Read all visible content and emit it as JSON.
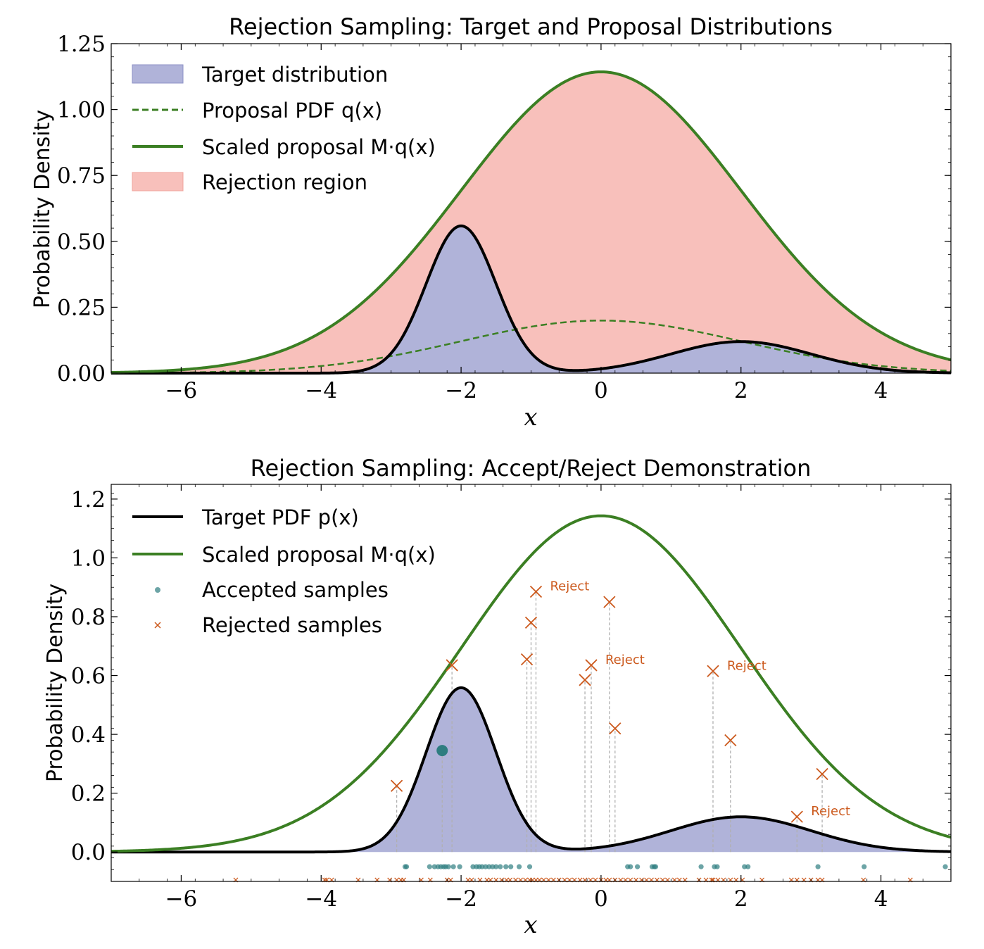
{
  "colors": {
    "target_fill": "#b0b3d9",
    "rejection_fill": "#f8c0bb",
    "green": "#3b7f23",
    "black": "#000000",
    "accepted": "#2e7d80",
    "rejected": "#cc5a1e",
    "stem": "#b0b0b0"
  },
  "chart_data": [
    {
      "type": "area",
      "title": "Rejection Sampling: Target and Proposal Distributions",
      "xlabel": "x",
      "ylabel": "Probability Density",
      "xlim": [
        -7,
        5
      ],
      "ylim": [
        0,
        1.25
      ],
      "xticks": [
        -6,
        -4,
        -2,
        0,
        2,
        4
      ],
      "xtick_labels": [
        "−6",
        "−4",
        "−2",
        "0",
        "2",
        "4"
      ],
      "yticks": [
        0,
        0.25,
        0.5,
        0.75,
        1.0,
        1.25
      ],
      "ytick_labels": [
        "0.00",
        "0.25",
        "0.50",
        "0.75",
        "1.00",
        "1.25"
      ],
      "target": {
        "components": [
          {
            "weight": 0.7,
            "mean": -2,
            "sd": 0.5
          },
          {
            "weight": 0.3,
            "mean": 2,
            "sd": 1
          }
        ]
      },
      "proposal": {
        "mean": 0,
        "sd": 2
      },
      "M": 5.73,
      "legend": [
        {
          "label": "Target distribution",
          "kind": "patch-target"
        },
        {
          "label": "Proposal PDF q(x)",
          "kind": "dashed-green"
        },
        {
          "label": "Scaled proposal M·q(x)",
          "kind": "solid-green"
        },
        {
          "label": "Rejection region",
          "kind": "patch-reject"
        }
      ],
      "legend_position": "top-left"
    },
    {
      "type": "scatter",
      "title": "Rejection Sampling: Accept/Reject Demonstration",
      "xlabel": "x",
      "ylabel": "Probability Density",
      "xlim": [
        -7,
        5
      ],
      "ylim": [
        -0.1,
        1.25
      ],
      "xticks": [
        -6,
        -4,
        -2,
        0,
        2,
        4
      ],
      "xtick_labels": [
        "−6",
        "−4",
        "−2",
        "0",
        "2",
        "4"
      ],
      "yticks": [
        0,
        0.2,
        0.4,
        0.6,
        0.8,
        1.0,
        1.2
      ],
      "ytick_labels": [
        "0.0",
        "0.2",
        "0.4",
        "0.6",
        "0.8",
        "1.0",
        "1.2"
      ],
      "legend": [
        {
          "label": "Target PDF p(x)",
          "kind": "solid-black"
        },
        {
          "label": "Scaled proposal M·q(x)",
          "kind": "solid-green"
        },
        {
          "label": "Accepted samples",
          "kind": "dot-accepted"
        },
        {
          "label": "Rejected samples",
          "kind": "x-rejected"
        }
      ],
      "legend_position": "top-left",
      "accepted_points": [
        {
          "x": -2.27,
          "y": 0.345
        }
      ],
      "rejected_points": [
        {
          "x": -2.92,
          "y": 0.225
        },
        {
          "x": -2.13,
          "y": 0.635
        },
        {
          "x": -1.06,
          "y": 0.655
        },
        {
          "x": -1.0,
          "y": 0.78
        },
        {
          "x": -0.93,
          "y": 0.885
        },
        {
          "x": -0.23,
          "y": 0.585
        },
        {
          "x": -0.14,
          "y": 0.635
        },
        {
          "x": 0.12,
          "y": 0.85
        },
        {
          "x": 0.2,
          "y": 0.42
        },
        {
          "x": 1.6,
          "y": 0.615
        },
        {
          "x": 1.85,
          "y": 0.38
        },
        {
          "x": 2.8,
          "y": 0.12
        },
        {
          "x": 3.16,
          "y": 0.265
        }
      ],
      "annotations": [
        {
          "text": "Reject",
          "x": -0.93,
          "y": 0.885
        },
        {
          "text": "Reject",
          "x": -0.14,
          "y": 0.635
        },
        {
          "text": "Reject",
          "x": 1.6,
          "y": 0.615
        },
        {
          "text": "Reject",
          "x": 2.8,
          "y": 0.12
        }
      ],
      "accepted_rug_y": -0.05,
      "accepted_rug_x": [
        -2.8,
        -2.78,
        -2.45,
        -2.38,
        -2.33,
        -2.29,
        -2.25,
        -2.22,
        -2.18,
        -2.11,
        -2.02,
        -1.83,
        -1.78,
        -1.74,
        -1.7,
        -1.65,
        -1.6,
        -1.55,
        -1.5,
        -1.44,
        -1.36,
        -1.29,
        -1.17,
        -1.02,
        0.38,
        0.42,
        0.52,
        0.73,
        0.76,
        0.78,
        1.43,
        1.62,
        1.66,
        2.05,
        2.1,
        3.1,
        3.76,
        4.92
      ],
      "rejected_rug_y": -0.095,
      "rejected_rug_x": [
        -5.22,
        -3.95,
        -3.92,
        -3.85,
        -3.47,
        -3.2,
        -3.02,
        -2.92,
        -2.86,
        -2.82,
        -2.57,
        -2.44,
        -2.2,
        -2.15,
        -1.9,
        -1.85,
        -1.73,
        -1.63,
        -1.58,
        -1.5,
        -1.42,
        -1.35,
        -1.3,
        -1.22,
        -1.15,
        -1.08,
        -1.02,
        -0.98,
        -0.93,
        -0.88,
        -0.82,
        -0.75,
        -0.68,
        -0.6,
        -0.52,
        -0.45,
        -0.38,
        -0.3,
        -0.23,
        -0.15,
        -0.08,
        0.0,
        0.07,
        0.12,
        0.2,
        0.28,
        0.35,
        0.42,
        0.5,
        0.58,
        0.65,
        0.72,
        0.8,
        0.88,
        0.95,
        1.05,
        1.12,
        1.2,
        1.4,
        1.5,
        1.58,
        1.6,
        1.67,
        1.75,
        1.85,
        1.93,
        2.02,
        2.3,
        2.72,
        2.8,
        2.9,
        3.0,
        3.1,
        3.16,
        3.75,
        4.42
      ]
    }
  ]
}
